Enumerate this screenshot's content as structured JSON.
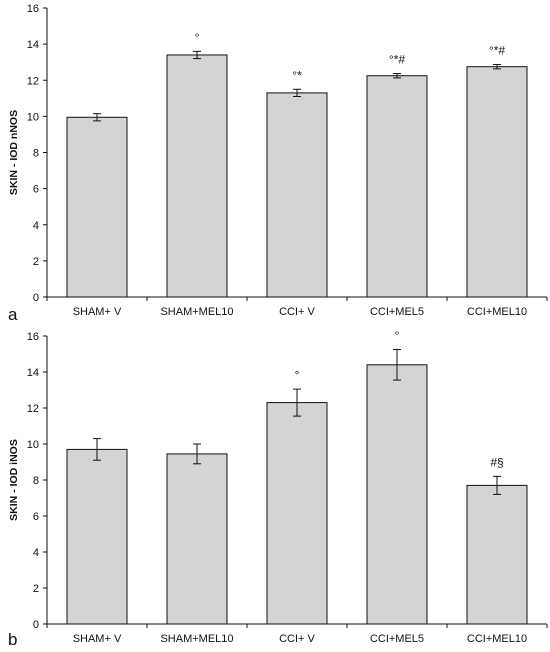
{
  "chart_data": [
    {
      "panel_label": "a",
      "type": "bar",
      "ylabel": "SKIN - IOD nNOS",
      "ylim": [
        0,
        16
      ],
      "yticks": [
        "0",
        "2",
        "4",
        "6",
        "8",
        "10",
        "12",
        "14",
        "16"
      ],
      "categories": [
        "SHAM+ V",
        "SHAM+MEL10",
        "CCI+ V",
        "CCI+MEL5",
        "CCI+MEL10"
      ],
      "values": [
        9.95,
        13.4,
        11.3,
        12.25,
        12.75
      ],
      "errors": [
        0.2,
        0.2,
        0.2,
        0.12,
        0.12
      ],
      "annotations": [
        "",
        "°",
        "°*",
        "°*#",
        "°*#"
      ],
      "bar_color": "#d4d4d4",
      "grid": false
    },
    {
      "panel_label": "b",
      "type": "bar",
      "ylabel": "SKIN - IOD iNOS",
      "ylim": [
        0,
        16
      ],
      "yticks": [
        "0",
        "2",
        "4",
        "6",
        "8",
        "10",
        "12",
        "14",
        "16"
      ],
      "categories": [
        "SHAM+ V",
        "SHAM+MEL10",
        "CCI+ V",
        "CCI+MEL5",
        "CCI+MEL10"
      ],
      "values": [
        9.7,
        9.45,
        12.3,
        14.4,
        7.7
      ],
      "errors": [
        0.6,
        0.55,
        0.75,
        0.85,
        0.5
      ],
      "annotations": [
        "",
        "",
        "°",
        "°",
        "#§"
      ],
      "bar_color": "#d4d4d4",
      "grid": false
    }
  ]
}
